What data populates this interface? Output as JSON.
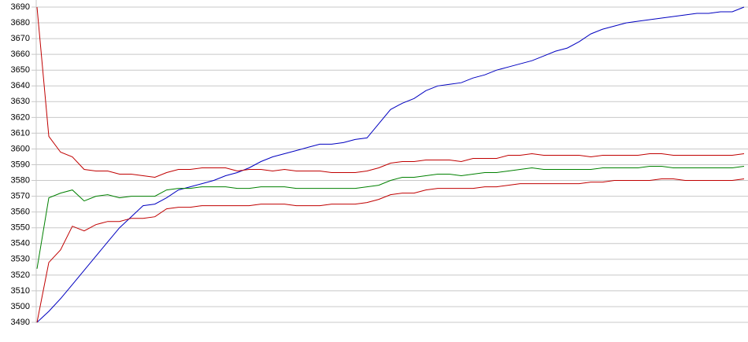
{
  "chart_data": {
    "type": "line",
    "ylim": [
      3490,
      3690
    ],
    "yticks": [
      3490,
      3500,
      3510,
      3520,
      3530,
      3540,
      3550,
      3560,
      3570,
      3580,
      3590,
      3600,
      3610,
      3620,
      3630,
      3640,
      3650,
      3660,
      3670,
      3680,
      3690
    ],
    "grid": true,
    "series": [
      {
        "color": "#0000c0",
        "values": [
          3490,
          3497,
          3505,
          3514,
          3523,
          3532,
          3541,
          3550,
          3557,
          3564,
          3565,
          3569,
          3574,
          3576,
          3578,
          3580,
          3583,
          3585,
          3588,
          3592,
          3595,
          3597,
          3599,
          3601,
          3603,
          3603,
          3604,
          3606,
          3607,
          3616,
          3625,
          3629,
          3632,
          3637,
          3640,
          3641,
          3642,
          3645,
          3647,
          3650,
          3652,
          3654,
          3656,
          3659,
          3662,
          3664,
          3668,
          3673,
          3676,
          3678,
          3680,
          3681,
          3682,
          3683,
          3684,
          3685,
          3686,
          3686,
          3687,
          3687,
          3690
        ]
      },
      {
        "color": "#c00000",
        "values": [
          3690,
          3608,
          3598,
          3595,
          3587,
          3586,
          3586,
          3584,
          3584,
          3583,
          3582,
          3585,
          3587,
          3587,
          3588,
          3588,
          3588,
          3586,
          3587,
          3587,
          3586,
          3587,
          3586,
          3586,
          3586,
          3585,
          3585,
          3585,
          3586,
          3588,
          3591,
          3592,
          3592,
          3593,
          3593,
          3593,
          3592,
          3594,
          3594,
          3594,
          3596,
          3596,
          3597,
          3596,
          3596,
          3596,
          3596,
          3595,
          3596,
          3596,
          3596,
          3596,
          3597,
          3597,
          3596,
          3596,
          3596,
          3596,
          3596,
          3596,
          3597
        ]
      },
      {
        "color": "#008000",
        "values": [
          3524,
          3569,
          3572,
          3574,
          3567,
          3570,
          3571,
          3569,
          3570,
          3570,
          3570,
          3574,
          3575,
          3575,
          3576,
          3576,
          3576,
          3575,
          3575,
          3576,
          3576,
          3576,
          3575,
          3575,
          3575,
          3575,
          3575,
          3575,
          3576,
          3577,
          3580,
          3582,
          3582,
          3583,
          3584,
          3584,
          3583,
          3584,
          3585,
          3585,
          3586,
          3587,
          3588,
          3587,
          3587,
          3587,
          3587,
          3587,
          3588,
          3588,
          3588,
          3588,
          3589,
          3589,
          3588,
          3588,
          3588,
          3588,
          3588,
          3588,
          3589
        ]
      },
      {
        "color": "#c00000",
        "values": [
          3490,
          3528,
          3536,
          3551,
          3548,
          3552,
          3554,
          3554,
          3556,
          3556,
          3557,
          3562,
          3563,
          3563,
          3564,
          3564,
          3564,
          3564,
          3564,
          3565,
          3565,
          3565,
          3564,
          3564,
          3564,
          3565,
          3565,
          3565,
          3566,
          3568,
          3571,
          3572,
          3572,
          3574,
          3575,
          3575,
          3575,
          3575,
          3576,
          3576,
          3577,
          3578,
          3578,
          3578,
          3578,
          3578,
          3578,
          3579,
          3579,
          3580,
          3580,
          3580,
          3580,
          3581,
          3581,
          3580,
          3580,
          3580,
          3580,
          3580,
          3581
        ]
      }
    ]
  }
}
